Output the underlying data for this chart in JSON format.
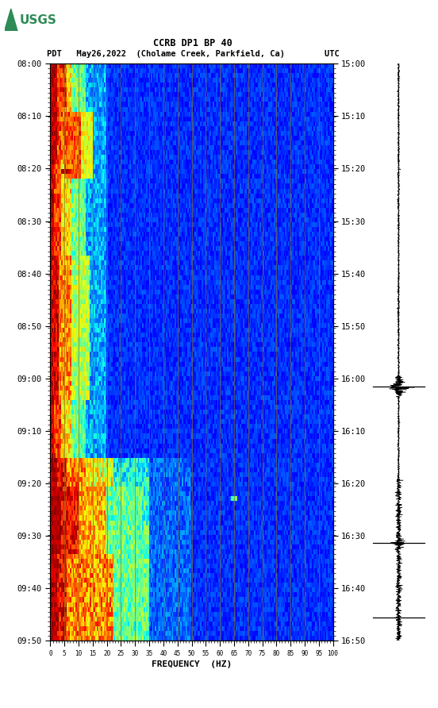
{
  "title_line1": "CCRB DP1 BP 40",
  "title_line2_left": "PDT",
  "title_line2_date": "May26,2022",
  "title_line2_loc": "(Cholame Creek, Parkfield, Ca)",
  "title_line2_right": "UTC",
  "xlabel": "FREQUENCY  (HZ)",
  "freq_min": 0,
  "freq_max": 100,
  "freq_ticks": [
    0,
    5,
    10,
    15,
    20,
    25,
    30,
    35,
    40,
    45,
    50,
    55,
    60,
    65,
    70,
    75,
    80,
    85,
    90,
    95,
    100
  ],
  "time_left_labels": [
    "08:00",
    "08:10",
    "08:20",
    "08:30",
    "08:40",
    "08:50",
    "09:00",
    "09:10",
    "09:20",
    "09:30",
    "09:40",
    "09:50"
  ],
  "time_right_labels": [
    "15:00",
    "15:10",
    "15:20",
    "15:30",
    "15:40",
    "15:50",
    "16:00",
    "16:10",
    "16:20",
    "16:30",
    "16:40",
    "16:50"
  ],
  "n_time_steps": 120,
  "n_freq_steps": 200,
  "bg_color": "white",
  "logo_color": "#2e8b57",
  "vertical_lines_color": "#8B6914",
  "vertical_lines_x": [
    5,
    10,
    15,
    20,
    25,
    30,
    35,
    40,
    45,
    50,
    55,
    60,
    65,
    70,
    75,
    80,
    85,
    90,
    95
  ],
  "colormap": "jet",
  "seed": 42
}
